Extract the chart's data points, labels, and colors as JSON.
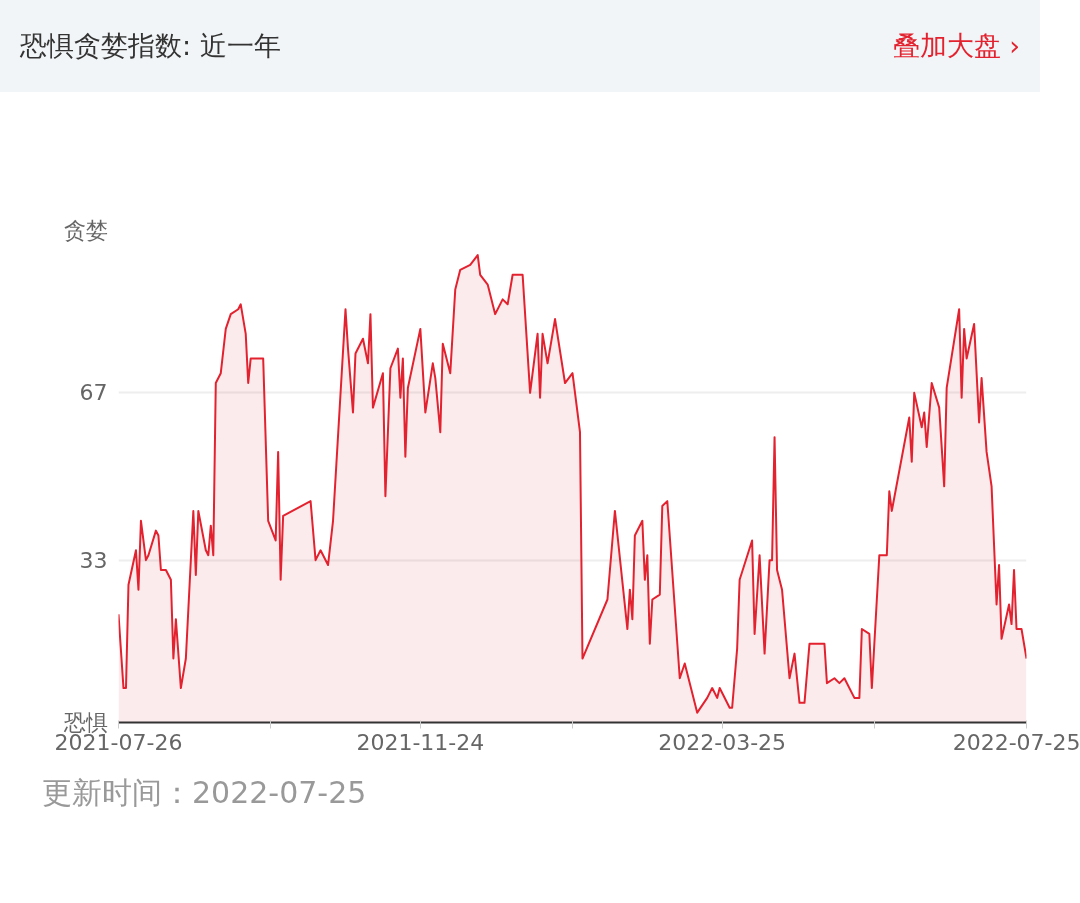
{
  "chart_data": {
    "type": "area",
    "title": "恐惧贪婪指数: 近一年",
    "annotations": [
      "叠加大盘 ›",
      "更新时间：2022-07-25"
    ],
    "x": [
      "2021-07-26",
      "2021-07-28",
      "2021-07-29",
      "2021-07-30",
      "2021-08-02",
      "2021-08-03",
      "2021-08-04",
      "2021-08-06",
      "2021-08-07",
      "2021-08-10",
      "2021-08-11",
      "2021-08-12",
      "2021-08-14",
      "2021-08-16",
      "2021-08-17",
      "2021-08-18",
      "2021-08-20",
      "2021-08-22",
      "2021-08-25",
      "2021-08-26",
      "2021-08-27",
      "2021-08-30",
      "2021-08-31",
      "2021-09-01",
      "2021-09-02",
      "2021-09-03",
      "2021-09-05",
      "2021-09-07",
      "2021-09-09",
      "2021-09-12",
      "2021-09-13",
      "2021-09-15",
      "2021-09-16",
      "2021-09-17",
      "2021-09-22",
      "2021-09-24",
      "2021-09-27",
      "2021-09-28",
      "2021-09-29",
      "2021-09-30",
      "2021-10-11",
      "2021-10-13",
      "2021-10-15",
      "2021-10-18",
      "2021-10-20",
      "2021-10-25",
      "2021-10-26",
      "2021-10-28",
      "2021-10-29",
      "2021-11-01",
      "2021-11-03",
      "2021-11-04",
      "2021-11-05",
      "2021-11-09",
      "2021-11-10",
      "2021-11-12",
      "2021-11-15",
      "2021-11-16",
      "2021-11-17",
      "2021-11-18",
      "2021-11-19",
      "2021-11-24",
      "2021-11-26",
      "2021-11-29",
      "2021-11-30",
      "2021-12-02",
      "2021-12-03",
      "2021-12-06",
      "2021-12-08",
      "2021-12-10",
      "2021-12-14",
      "2021-12-17",
      "2021-12-18",
      "2021-12-21",
      "2021-12-24",
      "2021-12-27",
      "2021-12-29",
      "2021-12-31",
      "2022-01-04",
      "2022-01-07",
      "2022-01-10",
      "2022-01-11",
      "2022-01-12",
      "2022-01-14",
      "2022-01-17",
      "2022-01-21",
      "2022-01-24",
      "2022-01-27",
      "2022-01-28",
      "2022-02-07",
      "2022-02-10",
      "2022-02-15",
      "2022-02-16",
      "2022-02-17",
      "2022-02-18",
      "2022-02-21",
      "2022-02-22",
      "2022-02-23",
      "2022-02-24",
      "2022-02-25",
      "2022-02-28",
      "2022-03-01",
      "2022-03-03",
      "2022-03-08",
      "2022-03-10",
      "2022-03-15",
      "2022-03-19",
      "2022-03-21",
      "2022-03-23",
      "2022-03-24",
      "2022-03-28",
      "2022-03-29",
      "2022-03-31",
      "2022-04-01",
      "2022-04-06",
      "2022-04-07",
      "2022-04-09",
      "2022-04-11",
      "2022-04-13",
      "2022-04-14",
      "2022-04-15",
      "2022-04-16",
      "2022-04-18",
      "2022-04-21",
      "2022-04-23",
      "2022-04-25",
      "2022-04-27",
      "2022-04-29",
      "2022-05-05",
      "2022-05-06",
      "2022-05-09",
      "2022-05-11",
      "2022-05-13",
      "2022-05-17",
      "2022-05-19",
      "2022-05-20",
      "2022-05-23",
      "2022-05-24",
      "2022-05-27",
      "2022-05-30",
      "2022-05-31",
      "2022-06-01",
      "2022-06-08",
      "2022-06-09",
      "2022-06-10",
      "2022-06-13",
      "2022-06-14",
      "2022-06-15",
      "2022-06-17",
      "2022-06-20",
      "2022-06-22",
      "2022-06-23",
      "2022-06-28",
      "2022-06-29",
      "2022-06-30",
      "2022-07-01",
      "2022-07-04",
      "2022-07-06",
      "2022-07-07",
      "2022-07-09",
      "2022-07-11",
      "2022-07-13",
      "2022-07-14",
      "2022-07-15",
      "2022-07-18",
      "2022-07-19",
      "2022-07-20",
      "2022-07-21",
      "2022-07-23",
      "2022-07-25"
    ],
    "series": [
      {
        "color": "#e3222f",
        "values": [
          22,
          7,
          7,
          28,
          35,
          27,
          41,
          33,
          34,
          39,
          38,
          31,
          31,
          29,
          13,
          21,
          7,
          13,
          43,
          30,
          43,
          35,
          34,
          40,
          34,
          69,
          71,
          80,
          83,
          84,
          85,
          79,
          69,
          74,
          74,
          41,
          37,
          55,
          29,
          42,
          45,
          33,
          35,
          32,
          41,
          84,
          76,
          63,
          75,
          78,
          73,
          83,
          64,
          71,
          46,
          72,
          76,
          66,
          74,
          54,
          68,
          80,
          63,
          73,
          70,
          59,
          77,
          71,
          88,
          92,
          93,
          95,
          91,
          89,
          83,
          86,
          85,
          91,
          91,
          67,
          79,
          66,
          79,
          73,
          82,
          69,
          71,
          59,
          13,
          25,
          43,
          19,
          27,
          21,
          38,
          41,
          29,
          34,
          16,
          25,
          26,
          44,
          45,
          9,
          12,
          2,
          5,
          7,
          5,
          7,
          3,
          3,
          15,
          29,
          37,
          18,
          34,
          14,
          33,
          33,
          58,
          31,
          27,
          9,
          14,
          4,
          4,
          16,
          16,
          8,
          9,
          8,
          9,
          5,
          5,
          19,
          18,
          7,
          34,
          34,
          47,
          43,
          62,
          53,
          67,
          60,
          63,
          56,
          69,
          64,
          48,
          68,
          84,
          66,
          80,
          74,
          81,
          61,
          70,
          55,
          48,
          24,
          32,
          17,
          24,
          20,
          31,
          19,
          19,
          13
        ]
      }
    ],
    "xlim": [
      "2021-07-26",
      "2022-07-25"
    ],
    "xticks": [
      {
        "value": "2021-07-26",
        "label": "2021-07-26"
      },
      {
        "value": "2021-09-25",
        "label": null
      },
      {
        "value": "2021-11-24",
        "label": "2021-11-24"
      },
      {
        "value": "2022-01-24",
        "label": null
      },
      {
        "value": "2022-03-25",
        "label": "2022-03-25"
      },
      {
        "value": "2022-05-25",
        "label": null
      },
      {
        "value": "2022-07-25",
        "label": "2022-07-25"
      }
    ],
    "ylim": [
      0,
      100
    ],
    "yticks": [
      {
        "value": 0,
        "label": "恐惧"
      },
      33,
      67,
      {
        "value": 100,
        "label": "贪婪"
      }
    ],
    "grid": "y"
  }
}
